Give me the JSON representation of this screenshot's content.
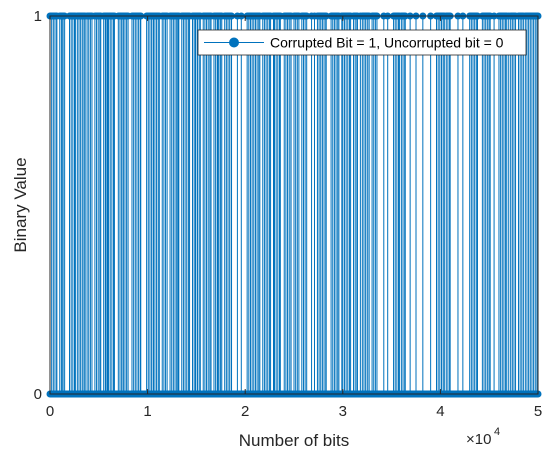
{
  "chart_data": {
    "type": "stem",
    "xlabel": "Number of bits",
    "ylabel": "Binary Value",
    "x_exponent_label": "×10",
    "x_exponent_power": "4",
    "xlim": [
      0,
      50000
    ],
    "ylim": [
      0,
      1
    ],
    "xticks": [
      0,
      10000,
      20000,
      30000,
      40000,
      50000
    ],
    "xtick_labels": [
      "0",
      "1",
      "2",
      "3",
      "4",
      "5"
    ],
    "yticks": [
      0,
      1
    ],
    "ytick_labels": [
      "0",
      "1"
    ],
    "grid": false,
    "legend_position": "top-right",
    "series": [
      {
        "name": "Corrupted Bit = 1, Uncorrupted bit = 0",
        "color": "#0072BD",
        "corrupted_ranges": [
          [
            0,
            700
          ],
          [
            1000,
            1500
          ],
          [
            2000,
            2600
          ],
          [
            2800,
            3600
          ],
          [
            3800,
            4300
          ],
          [
            4600,
            5200
          ],
          [
            5500,
            5900
          ],
          [
            6000,
            6600
          ],
          [
            7000,
            8000
          ],
          [
            8400,
            9300
          ],
          [
            9900,
            11200
          ],
          [
            11500,
            12000
          ],
          [
            12300,
            13200
          ],
          [
            13500,
            14300
          ],
          [
            14600,
            15400
          ],
          [
            15700,
            16500
          ],
          [
            16800,
            17600
          ],
          [
            17900,
            18600
          ],
          [
            20200,
            21500
          ],
          [
            21800,
            22600
          ],
          [
            23000,
            23600
          ],
          [
            24000,
            24700
          ],
          [
            25000,
            25500
          ],
          [
            25800,
            26300
          ],
          [
            27400,
            28300
          ],
          [
            28800,
            29600
          ],
          [
            30000,
            30800
          ],
          [
            31100,
            31500
          ],
          [
            32000,
            32700
          ],
          [
            33000,
            33500
          ],
          [
            35200,
            35800
          ],
          [
            36000,
            36400
          ],
          [
            39600,
            40400
          ],
          [
            40600,
            41000
          ],
          [
            43000,
            43800
          ],
          [
            44300,
            45100
          ],
          [
            46000,
            46800
          ],
          [
            47200,
            47700
          ],
          [
            48000,
            48500
          ],
          [
            48700,
            50000
          ]
        ],
        "isolated_corrupted": [
          1300,
          5700,
          7500,
          10600,
          13100,
          14900,
          17200,
          19200,
          19600,
          22900,
          26800,
          27100,
          29900,
          31800,
          34200,
          34600,
          36900,
          37500,
          38200,
          39000,
          41800,
          42300,
          45500,
          47000
        ]
      }
    ]
  }
}
